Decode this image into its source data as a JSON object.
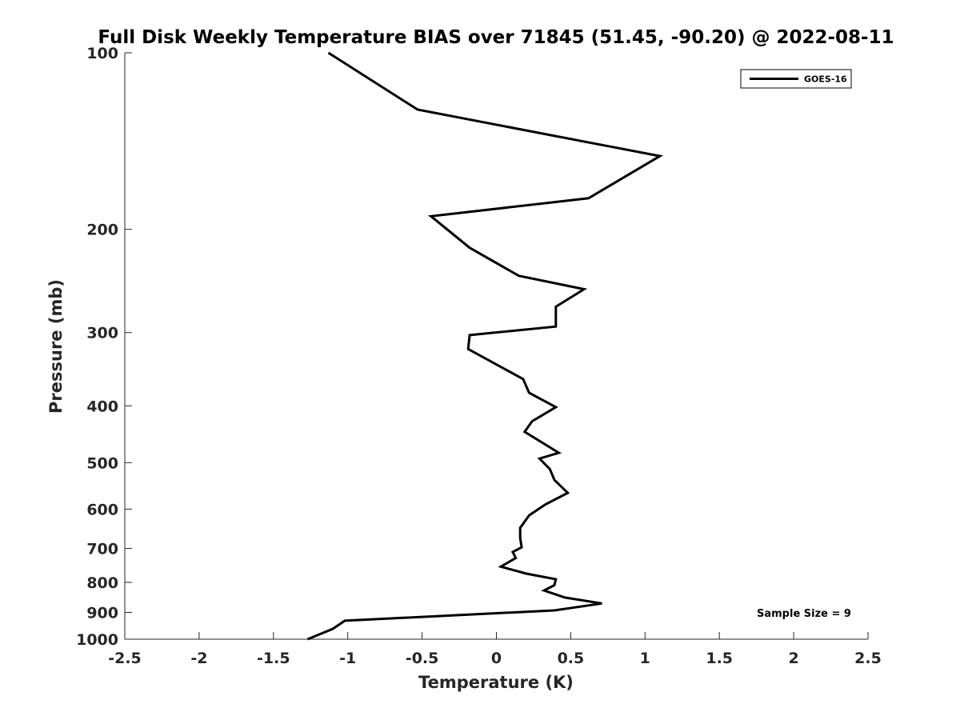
{
  "chart_data": {
    "type": "line",
    "title": "Full Disk Weekly Temperature BIAS over 71845 (51.45, -90.20) @ 2022-08-11",
    "xlabel": "Temperature (K)",
    "ylabel": "Pressure (mb)",
    "xlim": [
      -2.5,
      2.5
    ],
    "ylim": [
      100,
      1000
    ],
    "y_scale": "log",
    "y_reversed": true,
    "x_ticks": [
      -2.5,
      -2,
      -1.5,
      -1,
      -0.5,
      0,
      0.5,
      1,
      1.5,
      2,
      2.5
    ],
    "x_tick_labels": [
      "-2.5",
      "-2",
      "-1.5",
      "-1",
      "-0.5",
      "0",
      "0.5",
      "1",
      "1.5",
      "2",
      "2.5"
    ],
    "y_ticks": [
      100,
      200,
      300,
      400,
      500,
      600,
      700,
      800,
      900,
      1000
    ],
    "y_tick_labels": [
      "100",
      "200",
      "300",
      "400",
      "500",
      "600",
      "700",
      "800",
      "900",
      "1000"
    ],
    "grid": false,
    "legend_position": "top-right",
    "series": [
      {
        "name": "GOES-16",
        "color": "#000000",
        "x": [
          -1.13,
          -0.53,
          1.1,
          0.62,
          -0.44,
          -0.18,
          0.15,
          0.59,
          0.4,
          0.4,
          0.4,
          -0.18,
          -0.19,
          0.18,
          0.22,
          0.4,
          0.24,
          0.19,
          0.42,
          0.29,
          0.36,
          0.39,
          0.48,
          0.33,
          0.22,
          0.16,
          0.16,
          0.17,
          0.11,
          0.13,
          0.03,
          0.2,
          0.4,
          0.39,
          0.32,
          0.46,
          0.71,
          0.39,
          -1.02,
          -1.1,
          -1.27
        ],
        "y": [
          100,
          125,
          150,
          177,
          190,
          215,
          240,
          253,
          271,
          285,
          293,
          303,
          320,
          360,
          380,
          402,
          425,
          443,
          481,
          492,
          513,
          535,
          563,
          589,
          615,
          646,
          672,
          697,
          710,
          727,
          752,
          773,
          790,
          809,
          826,
          849,
          869,
          893,
          930,
          960,
          1000
        ]
      }
    ],
    "annotations": [
      "Sample Size = 9"
    ]
  }
}
